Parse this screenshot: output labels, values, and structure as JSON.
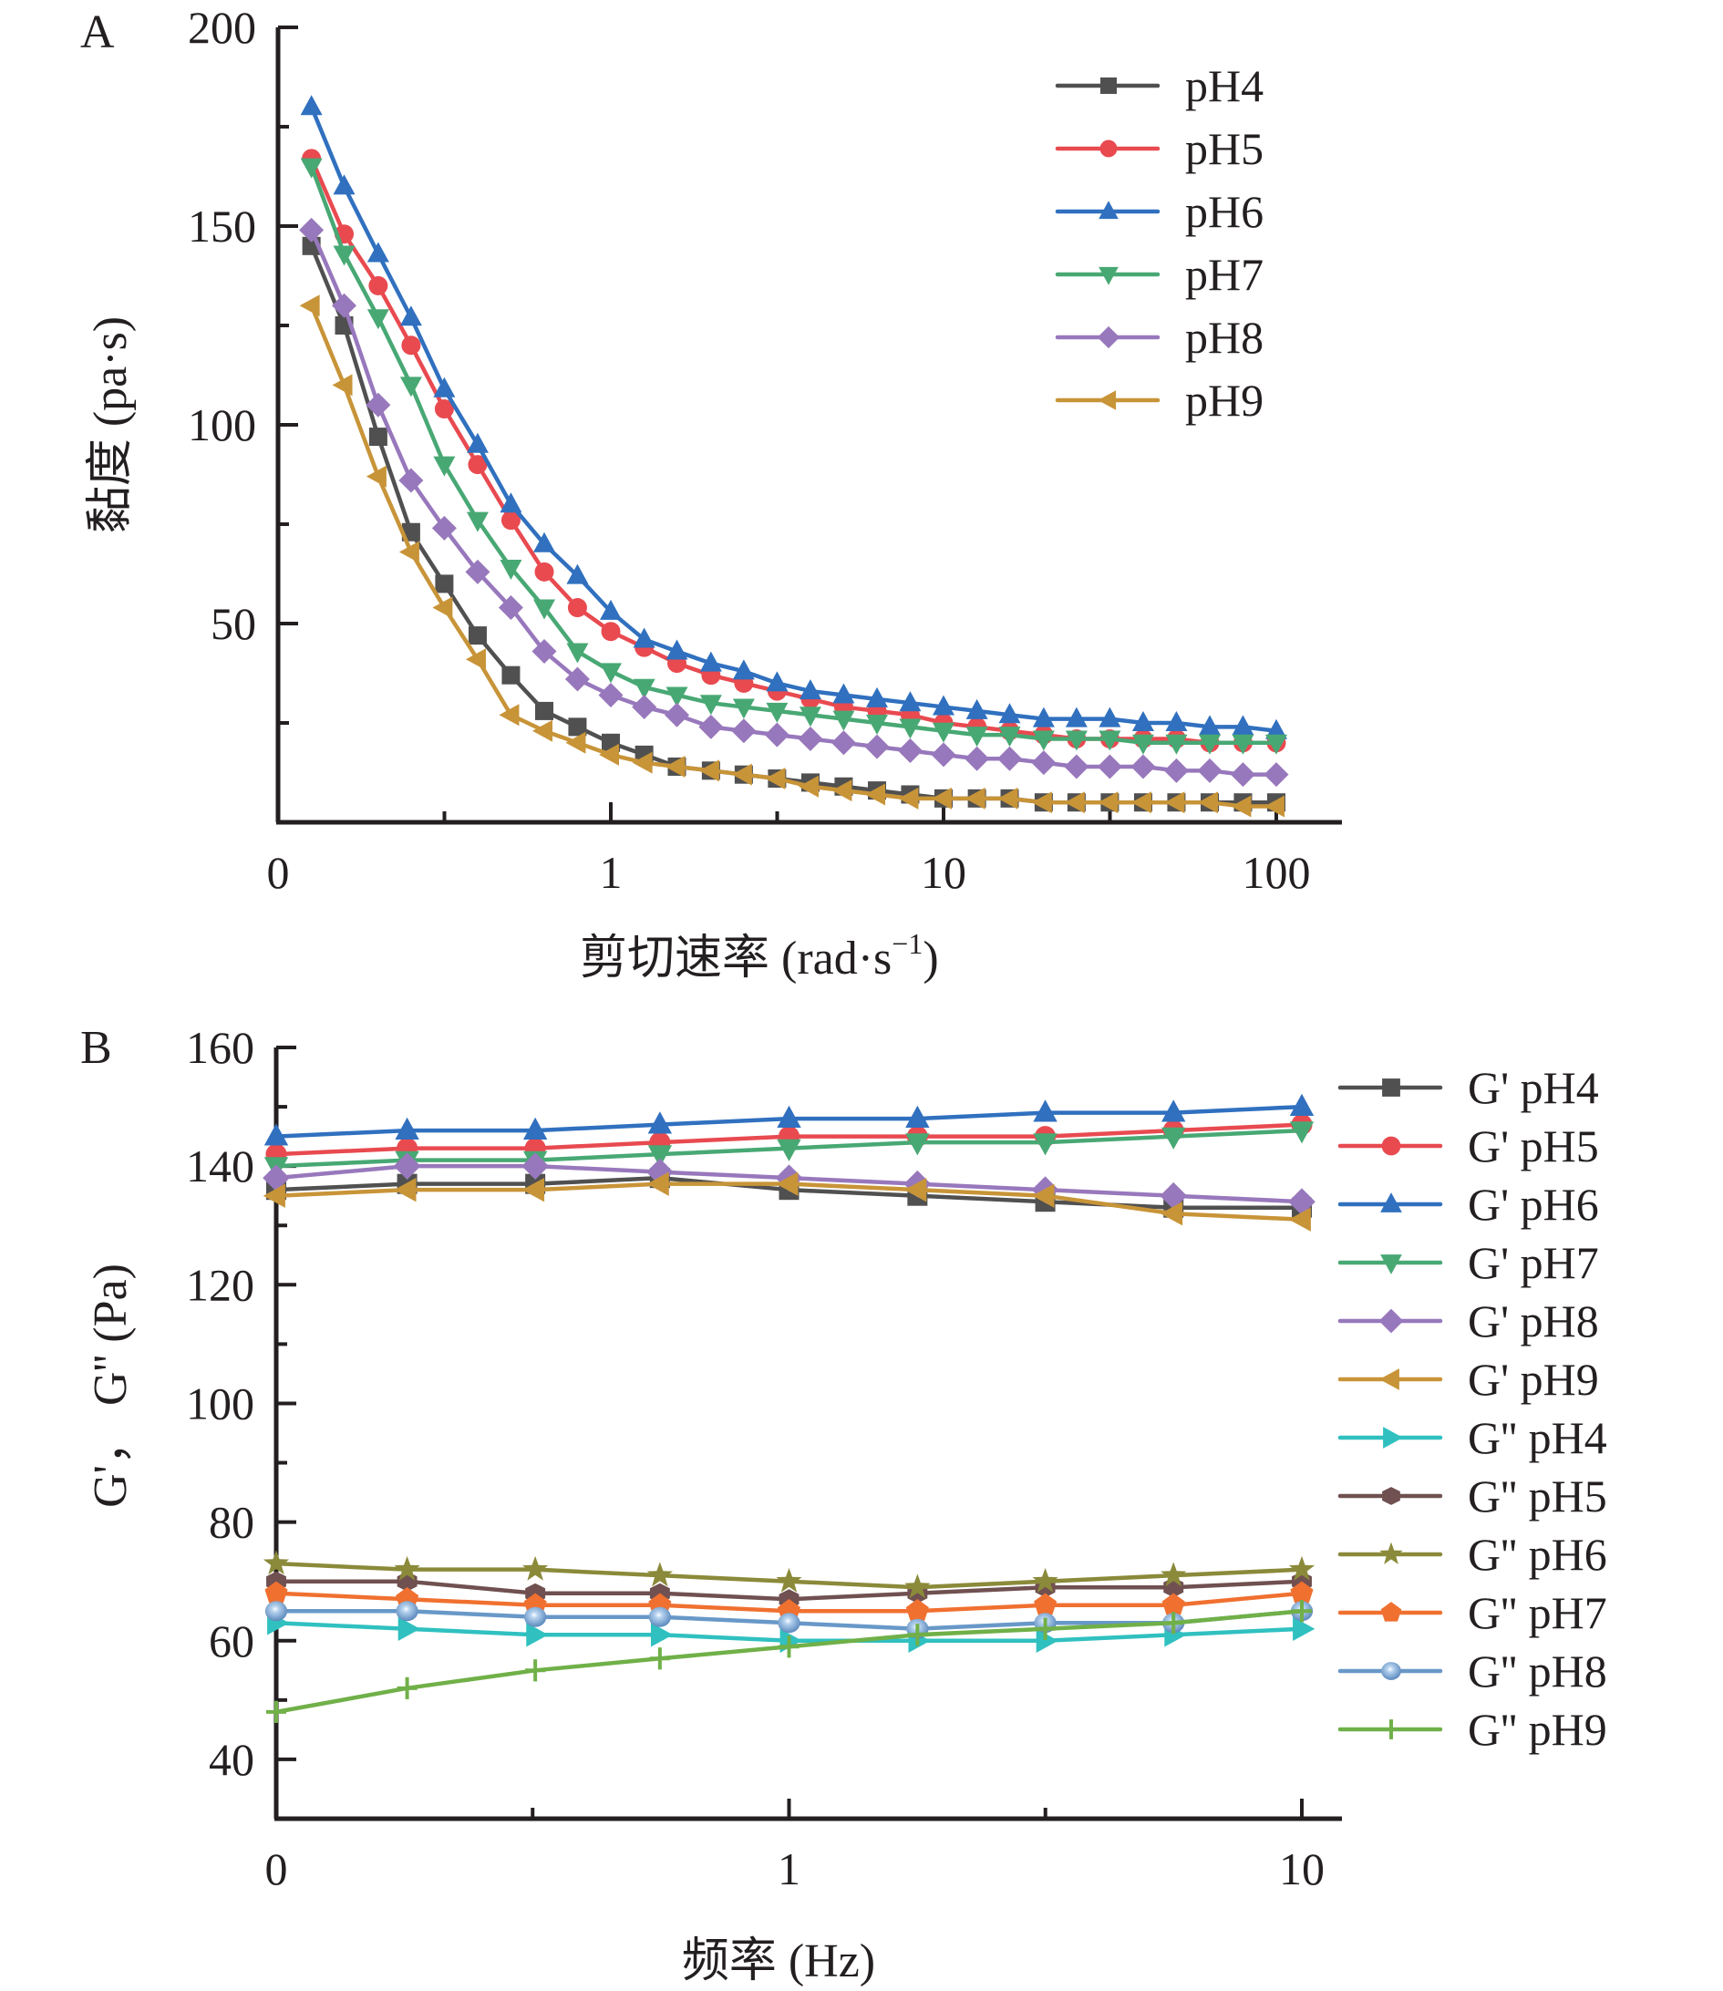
{
  "chart_data": [
    {
      "panel": "A",
      "type": "line",
      "title": "",
      "xlabel": "剪切速率 (rad·s⁻¹)",
      "xlabel_main": "剪切速率 (rad·s",
      "xlabel_sup": "−1",
      "xlabel_end": ")",
      "ylabel": "黏度 (pa·s)",
      "xscale": "log",
      "xlim": [
        0.1,
        100
      ],
      "ylim": [
        0,
        200
      ],
      "xticks": [
        {
          "value": 0.1,
          "label": "0"
        },
        {
          "value": 1,
          "label": "1"
        },
        {
          "value": 10,
          "label": "10"
        },
        {
          "value": 100,
          "label": "100"
        }
      ],
      "yticks": [
        {
          "value": 50,
          "label": "50"
        },
        {
          "value": 100,
          "label": "100"
        },
        {
          "value": 150,
          "label": "150"
        },
        {
          "value": 200,
          "label": "200"
        }
      ],
      "legend_position": "top-right",
      "grid": false,
      "x": [
        0.126,
        0.158,
        0.2,
        0.251,
        0.316,
        0.398,
        0.501,
        0.631,
        0.794,
        1.0,
        1.26,
        1.58,
        2.0,
        2.51,
        3.16,
        3.98,
        5.01,
        6.31,
        7.94,
        10.0,
        12.6,
        15.8,
        20.0,
        25.1,
        31.6,
        39.8,
        50.1,
        63.1,
        79.4,
        100.0
      ],
      "series": [
        {
          "name": "pH4",
          "color": "#505050",
          "marker": "square",
          "values": [
            145,
            125,
            97,
            73,
            60,
            47,
            37,
            28,
            24,
            20,
            17,
            14,
            13,
            12,
            11,
            10,
            9,
            8,
            7,
            6,
            6,
            6,
            5,
            5,
            5,
            5,
            5,
            5,
            5,
            5
          ]
        },
        {
          "name": "pH5",
          "color": "#e84a50",
          "marker": "circle",
          "values": [
            167,
            148,
            135,
            120,
            104,
            90,
            76,
            63,
            54,
            48,
            44,
            40,
            37,
            35,
            33,
            31,
            29,
            28,
            27,
            25,
            24,
            23,
            22,
            21,
            21,
            21,
            21,
            20,
            20,
            20
          ]
        },
        {
          "name": "pH6",
          "color": "#3070bf",
          "marker": "triangle-up",
          "values": [
            180,
            160,
            143,
            127,
            109,
            95,
            80,
            70,
            62,
            53,
            46,
            43,
            40,
            38,
            35,
            33,
            32,
            31,
            30,
            29,
            28,
            27,
            26,
            26,
            26,
            25,
            25,
            24,
            24,
            23
          ]
        },
        {
          "name": "pH7",
          "color": "#48a874",
          "marker": "triangle-down",
          "values": [
            165,
            143,
            127,
            110,
            90,
            76,
            64,
            54,
            43,
            38,
            34,
            32,
            30,
            29,
            28,
            27,
            26,
            25,
            24,
            23,
            22,
            22,
            21,
            21,
            21,
            20,
            20,
            20,
            20,
            20
          ]
        },
        {
          "name": "pH8",
          "color": "#9878bc",
          "marker": "diamond",
          "values": [
            149,
            130,
            105,
            86,
            74,
            63,
            54,
            43,
            36,
            32,
            29,
            27,
            24,
            23,
            22,
            21,
            20,
            19,
            18,
            17,
            16,
            16,
            15,
            14,
            14,
            14,
            13,
            13,
            12,
            12
          ]
        },
        {
          "name": "pH9",
          "color": "#c89438",
          "marker": "triangle-left",
          "values": [
            130,
            110,
            87,
            68,
            54,
            41,
            27,
            23,
            20,
            17,
            15,
            14,
            13,
            12,
            11,
            9,
            8,
            7,
            6,
            6,
            6,
            6,
            5,
            5,
            5,
            5,
            5,
            5,
            4,
            4
          ]
        }
      ]
    },
    {
      "panel": "B",
      "type": "line",
      "title": "",
      "xlabel": "频率 (Hz)",
      "ylabel": "G'， G'' (Pa)",
      "xscale": "log",
      "xlim": [
        0.1,
        10
      ],
      "ylim": [
        30,
        160
      ],
      "xticks": [
        {
          "value": 0.1,
          "label": "0"
        },
        {
          "value": 1,
          "label": "1"
        },
        {
          "value": 10,
          "label": "10"
        }
      ],
      "yticks": [
        {
          "value": 40,
          "label": "40"
        },
        {
          "value": 60,
          "label": "60"
        },
        {
          "value": 80,
          "label": "80"
        },
        {
          "value": 100,
          "label": "100"
        },
        {
          "value": 120,
          "label": "120"
        },
        {
          "value": 140,
          "label": "140"
        },
        {
          "value": 160,
          "label": "160"
        }
      ],
      "legend_position": "right",
      "grid": false,
      "x": [
        0.1,
        0.18,
        0.32,
        0.56,
        1.0,
        1.78,
        3.16,
        5.62,
        10.0
      ],
      "series": [
        {
          "name": "G' pH4",
          "color": "#505050",
          "marker": "square",
          "values": [
            136,
            137,
            137,
            138,
            136,
            135,
            134,
            133,
            133
          ]
        },
        {
          "name": "G' pH5",
          "color": "#e84a50",
          "marker": "circle",
          "values": [
            142,
            143,
            143,
            144,
            145,
            145,
            145,
            146,
            147
          ]
        },
        {
          "name": "G' pH6",
          "color": "#3070bf",
          "marker": "triangle-up",
          "values": [
            145,
            146,
            146,
            147,
            148,
            148,
            149,
            149,
            150
          ]
        },
        {
          "name": "G' pH7",
          "color": "#48a874",
          "marker": "triangle-down",
          "values": [
            140,
            141,
            141,
            142,
            143,
            144,
            144,
            145,
            146
          ]
        },
        {
          "name": "G' pH8",
          "color": "#9878bc",
          "marker": "diamond",
          "values": [
            138,
            140,
            140,
            139,
            138,
            137,
            136,
            135,
            134
          ]
        },
        {
          "name": "G' pH9",
          "color": "#c89438",
          "marker": "triangle-left",
          "values": [
            135,
            136,
            136,
            137,
            137,
            136,
            135,
            132,
            131
          ]
        },
        {
          "name": "G'' pH4",
          "color": "#30c0c0",
          "marker": "triangle-right",
          "values": [
            63,
            62,
            61,
            61,
            60,
            60,
            60,
            61,
            62
          ]
        },
        {
          "name": "G'' pH5",
          "color": "#705050",
          "marker": "hexagon",
          "values": [
            70,
            70,
            68,
            68,
            67,
            68,
            69,
            69,
            70
          ]
        },
        {
          "name": "G'' pH6",
          "color": "#8a8a3a",
          "marker": "star",
          "values": [
            73,
            72,
            72,
            71,
            70,
            69,
            70,
            71,
            72
          ]
        },
        {
          "name": "G'' pH7",
          "color": "#f07030",
          "marker": "pentagon",
          "values": [
            68,
            67,
            66,
            66,
            65,
            65,
            66,
            66,
            68
          ]
        },
        {
          "name": "G'' pH8",
          "color": "#6898c8",
          "marker": "sphere",
          "values": [
            65,
            65,
            64,
            64,
            63,
            62,
            63,
            63,
            65
          ]
        },
        {
          "name": "G'' pH9",
          "color": "#70b048",
          "marker": "plus",
          "values": [
            48,
            52,
            55,
            57,
            59,
            61,
            62,
            63,
            65
          ]
        }
      ]
    }
  ]
}
